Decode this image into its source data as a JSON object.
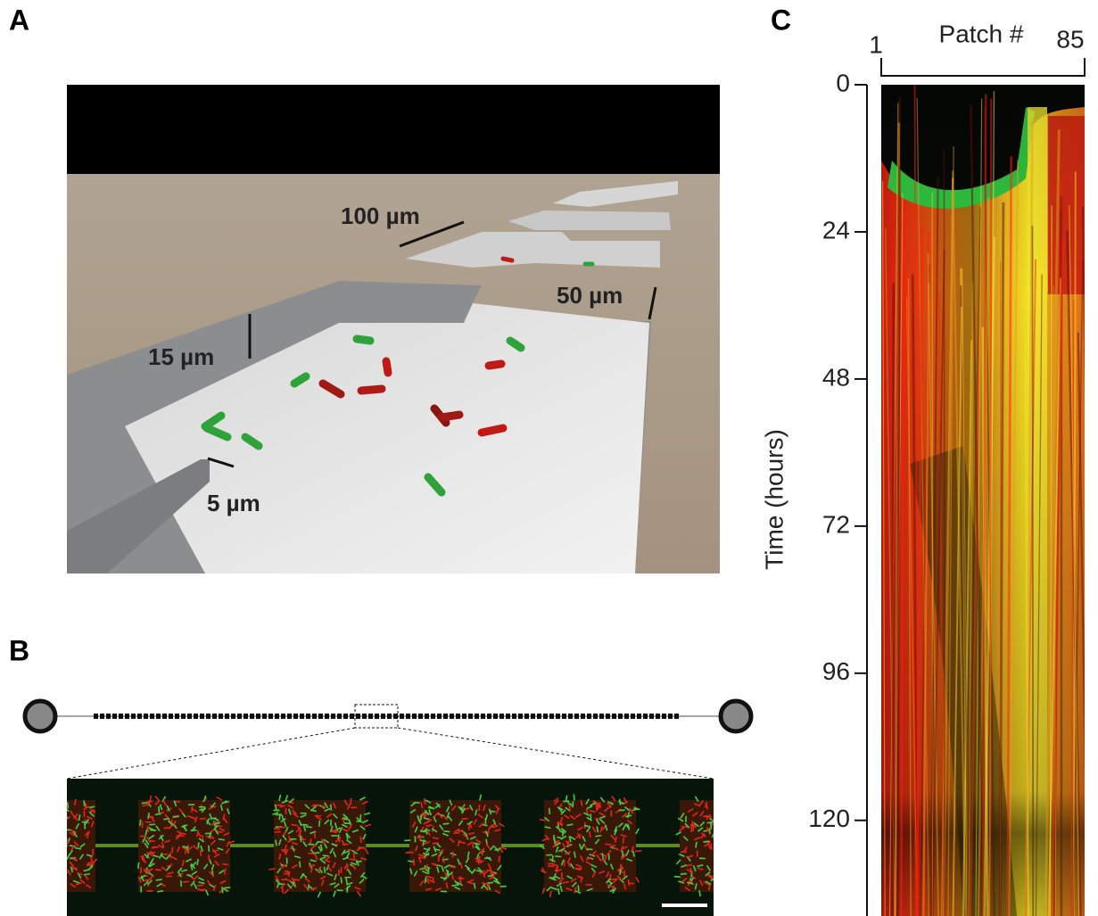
{
  "panels": {
    "A": {
      "label": "A",
      "dimensions": [
        "100 µm",
        "50 µm",
        "15 µm",
        "5 µm"
      ]
    },
    "B": {
      "label": "B"
    },
    "C": {
      "label": "C",
      "kymograph": {
        "x_label": "Patch #",
        "xticks": [
          1,
          85
        ],
        "y_label": "Time (hours)",
        "ylim": [
          0,
          135.6
        ],
        "yticks": [
          0,
          24,
          48,
          72,
          96,
          120
        ]
      }
    }
  }
}
